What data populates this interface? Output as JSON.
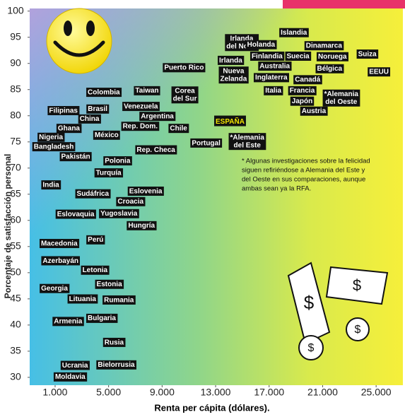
{
  "chart_data": {
    "type": "scatter",
    "y_label": "Porcentaje de satisfacción personal",
    "x_label": "Renta per cápita (dólares).",
    "annotation_lines": [
      "* Algunas investigaciones sobre la felicidad",
      "siguen refiriéndose a Alemania del Este y",
      "del Oeste en sus comparaciones, aunque",
      "ambas sean ya la RFA."
    ],
    "labels": [
      "Irlanda\ndel Norte",
      "Islandia",
      "Holanda",
      "Dinamarca",
      "Finlandia",
      "Suecia",
      "Noruega",
      "Suiza",
      "Irlanda",
      "Australia",
      "Puerto Rico",
      "Nueva\nZelanda",
      "Bélgica",
      "EEUU",
      "Inglaterra",
      "Canadá",
      "Italia",
      "Francia",
      "*Alemania\ndel Oeste",
      "Japón",
      "Austria",
      "Colombia",
      "Taiwan",
      "Corea\ndel Sur",
      "Venezuela",
      "Filipinas",
      "Brasil",
      "Argentina",
      "China",
      "Rep. Dom.",
      "Chile",
      "ESPAÑA",
      "Ghana",
      "Nigeria",
      "México",
      "Bangladesh",
      "Portugal",
      "*Alemania\ndel Este",
      "Pakistán",
      "Rep. Checa",
      "Polonia",
      "Turquía",
      "India",
      "Eslovenia",
      "Sudáfrica",
      "Croacia",
      "Eslovaquia",
      "Yugoslavia",
      "Hungría",
      "Perú",
      "Macedonia",
      "Azerbayán",
      "Letonia",
      "Estonia",
      "Georgia",
      "Lituania",
      "Rumania",
      "Bulgaria",
      "Armenia",
      "Rusia",
      "Ucrania",
      "Bielorrusia",
      "Moldavia"
    ],
    "x": [
      14950,
      18850,
      16400,
      21100,
      16850,
      19160,
      21730,
      24340,
      14130,
      17420,
      10640,
      14340,
      21520,
      25210,
      17160,
      19880,
      17310,
      19470,
      22390,
      19470,
      20340,
      4640,
      7870,
      10700,
      7410,
      1620,
      4180,
      8640,
      3570,
      7360,
      10230,
      14080,
      2030,
      690,
      4850,
      900,
      12290,
      15360,
      2540,
      8540,
      5670,
      5000,
      690,
      7770,
      3820,
      6640,
      2540,
      5770,
      7460,
      4030,
      1310,
      1410,
      3980,
      5050,
      950,
      3050,
      5770,
      4490,
      1970,
      5410,
      2490,
      5570,
      2130
    ],
    "values": [
      94.0,
      95.9,
      93.6,
      93.4,
      91.4,
      91.4,
      91.3,
      91.8,
      90.6,
      89.5,
      89.2,
      87.8,
      89.0,
      88.4,
      87.3,
      86.9,
      84.8,
      84.8,
      83.4,
      82.8,
      80.9,
      84.5,
      84.8,
      84.0,
      81.8,
      81.0,
      81.3,
      79.9,
      79.4,
      78.0,
      77.6,
      78.9,
      77.6,
      75.9,
      76.3,
      74.1,
      74.8,
      75.1,
      72.2,
      73.5,
      71.4,
      69.1,
      66.8,
      65.6,
      65.1,
      63.6,
      61.2,
      61.3,
      59.0,
      56.3,
      55.6,
      52.3,
      50.5,
      47.8,
      47.0,
      45.0,
      44.8,
      41.3,
      40.7,
      36.7,
      32.3,
      32.4,
      30.1
    ],
    "label_color": "#ffffff",
    "box_color": "#111111",
    "highlight_index": 31,
    "highlight_color": "#f3e600",
    "xlim": [
      -900,
      27000
    ],
    "xticks": [
      {
        "value": 1000,
        "label": "1.000"
      },
      {
        "value": 5000,
        "label": "5.000"
      },
      {
        "value": 9000,
        "label": "9.000"
      },
      {
        "value": 13000,
        "label": "13.000"
      },
      {
        "value": 17000,
        "label": "17.000"
      },
      {
        "value": 21000,
        "label": "21.000"
      },
      {
        "value": 25000,
        "label": "25.000"
      }
    ],
    "ylim": [
      28.5,
      100.5
    ],
    "yticks": [
      30,
      35,
      40,
      45,
      50,
      55,
      60,
      65,
      70,
      75,
      80,
      85,
      90,
      95,
      100
    ]
  }
}
